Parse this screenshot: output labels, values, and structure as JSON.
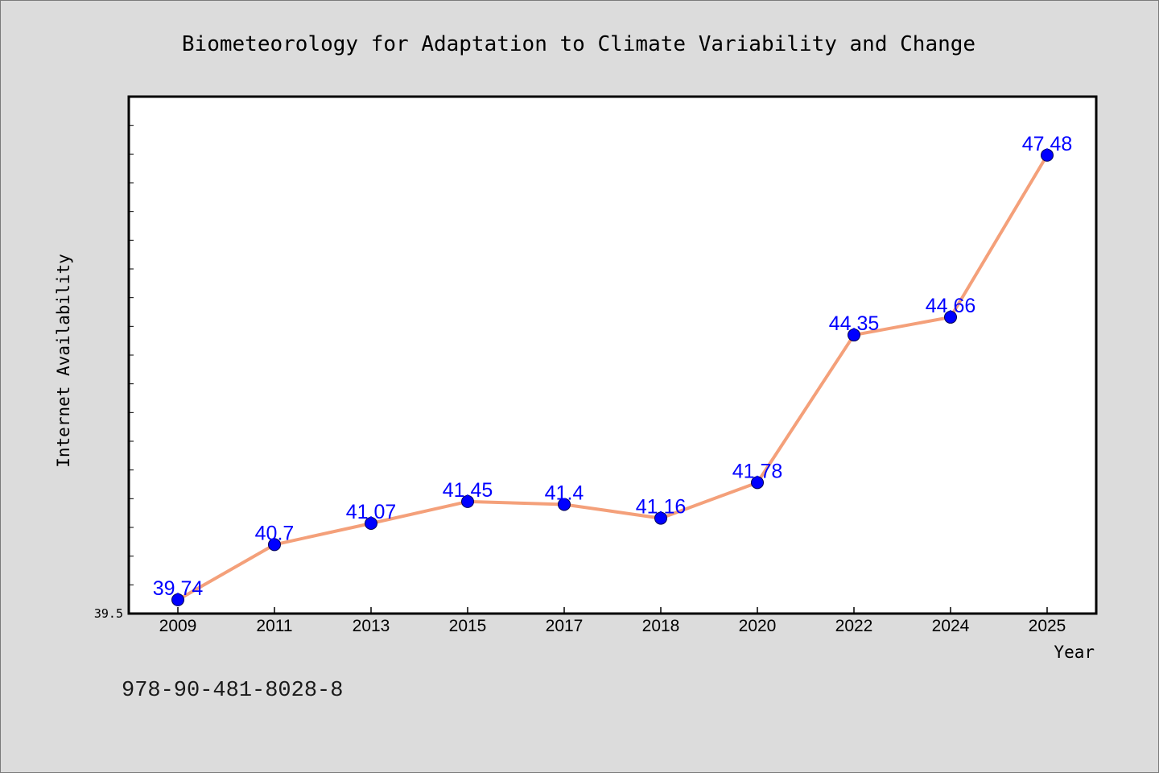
{
  "chart_data": {
    "type": "line",
    "title": "Biometeorology for Adaptation to Climate Variability and Change",
    "xlabel": "Year",
    "ylabel": "Internet Availability",
    "categories": [
      "2009",
      "2011",
      "2013",
      "2015",
      "2017",
      "2018",
      "2020",
      "2022",
      "2024",
      "2025"
    ],
    "series": [
      {
        "values": [
          39.74,
          40.7,
          41.07,
          41.45,
          41.4,
          41.16,
          41.78,
          44.35,
          44.66,
          47.48
        ],
        "value_labels": [
          "39.74",
          "40.7",
          "41.07",
          "41.45",
          "41.4",
          "41.16",
          "41.78",
          "44.35",
          "44.66",
          "47.48"
        ]
      }
    ],
    "ylim": [
      39.5,
      48.5
    ],
    "ymin_label": "39.5",
    "grid": false,
    "line_color": "#f4a07a",
    "marker_color": "#0000ff",
    "label_color": "#0000ff"
  },
  "footer": {
    "isbn": "978-90-481-8028-8"
  }
}
